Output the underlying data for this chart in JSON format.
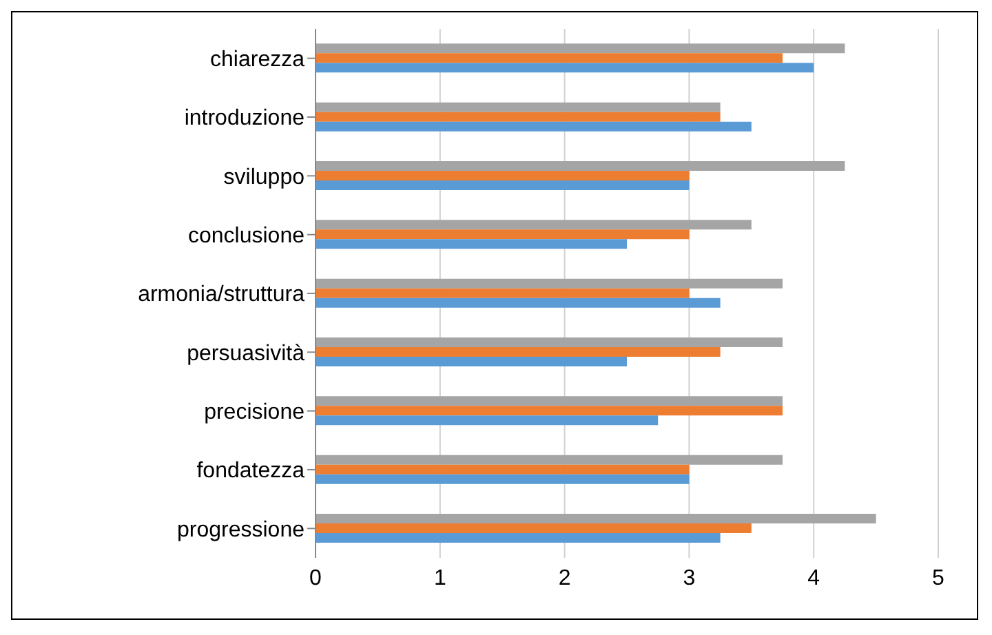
{
  "chart_data": {
    "type": "bar",
    "orientation": "horizontal",
    "categories": [
      "chiarezza",
      "introduzione",
      "sviluppo",
      "conclusione",
      "armonia/struttura",
      "persuasività",
      "precisione",
      "fondatezza",
      "progressione"
    ],
    "series": [
      {
        "color": "#5b9bd5",
        "values": [
          4,
          3.5,
          3,
          2.5,
          3.25,
          2.5,
          2.75,
          3,
          3.25
        ]
      },
      {
        "color": "#ed7d31",
        "values": [
          3.75,
          3.25,
          3,
          3,
          3,
          3.25,
          3.75,
          3,
          3.5
        ]
      },
      {
        "color": "#a5a5a5",
        "values": [
          4.25,
          3.25,
          4.25,
          3.5,
          3.75,
          3.75,
          3.75,
          3.75,
          4.5
        ]
      }
    ],
    "xlim": [
      0,
      5
    ],
    "xticks": [
      0,
      1,
      2,
      3,
      4,
      5
    ],
    "grid": "x",
    "legend": false
  }
}
